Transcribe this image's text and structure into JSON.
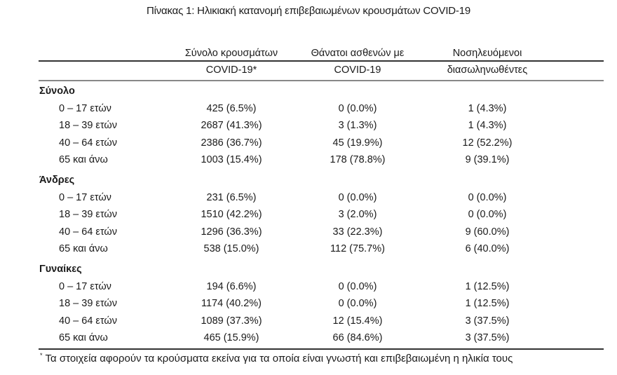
{
  "title": "Πίνακας 1: Ηλικιακή κατανομή επιβεβαιωμένων κρουσμάτων COVID-19",
  "columns": [
    {
      "line1": "Σύνολο κρουσμάτων",
      "line2": "COVID-19*"
    },
    {
      "line1": "Θάνατοι ασθενών με",
      "line2": "COVID-19"
    },
    {
      "line1": "Νοσηλευόμενοι",
      "line2": "διασωληνωθέντες"
    }
  ],
  "sections": [
    {
      "label": "Σύνολο",
      "rows": [
        {
          "age": "0 – 17 ετών",
          "values": [
            "425 (6.5%)",
            "0 (0.0%)",
            "1 (4.3%)"
          ]
        },
        {
          "age": "18 – 39 ετών",
          "values": [
            "2687 (41.3%)",
            "3 (1.3%)",
            "1 (4.3%)"
          ]
        },
        {
          "age": "40 – 64 ετών",
          "values": [
            "2386 (36.7%)",
            "45 (19.9%)",
            "12 (52.2%)"
          ]
        },
        {
          "age": "65 και άνω",
          "values": [
            "1003 (15.4%)",
            "178 (78.8%)",
            "9 (39.1%)"
          ]
        }
      ]
    },
    {
      "label": "Άνδρες",
      "rows": [
        {
          "age": "0 – 17 ετών",
          "values": [
            "231 (6.5%)",
            "0 (0.0%)",
            "0 (0.0%)"
          ]
        },
        {
          "age": "18 – 39 ετών",
          "values": [
            "1510 (42.2%)",
            "3 (2.0%)",
            "0 (0.0%)"
          ]
        },
        {
          "age": "40 – 64 ετών",
          "values": [
            "1296 (36.3%)",
            "33 (22.3%)",
            "9 (60.0%)"
          ]
        },
        {
          "age": "65 και άνω",
          "values": [
            "538 (15.0%)",
            "112 (75.7%)",
            "6 (40.0%)"
          ]
        }
      ]
    },
    {
      "label": "Γυναίκες",
      "rows": [
        {
          "age": "0 – 17 ετών",
          "values": [
            "194 (6.6%)",
            "0 (0.0%)",
            "1 (12.5%)"
          ]
        },
        {
          "age": "18 – 39 ετών",
          "values": [
            "1174 (40.2%)",
            "0 (0.0%)",
            "1 (12.5%)"
          ]
        },
        {
          "age": "40 – 64 ετών",
          "values": [
            "1089 (37.3%)",
            "12 (15.4%)",
            "3 (37.5%)"
          ]
        },
        {
          "age": "65 και άνω",
          "values": [
            "465 (15.9%)",
            "66 (84.6%)",
            "3 (37.5%)"
          ]
        }
      ]
    }
  ],
  "footnote": {
    "mark": "*",
    "text": "Τα στοιχεία αφορούν τα κρούσματα εκείνα για τα οποία είναι γνωστή και επιβεβαιωμένη η ηλικία τους"
  }
}
